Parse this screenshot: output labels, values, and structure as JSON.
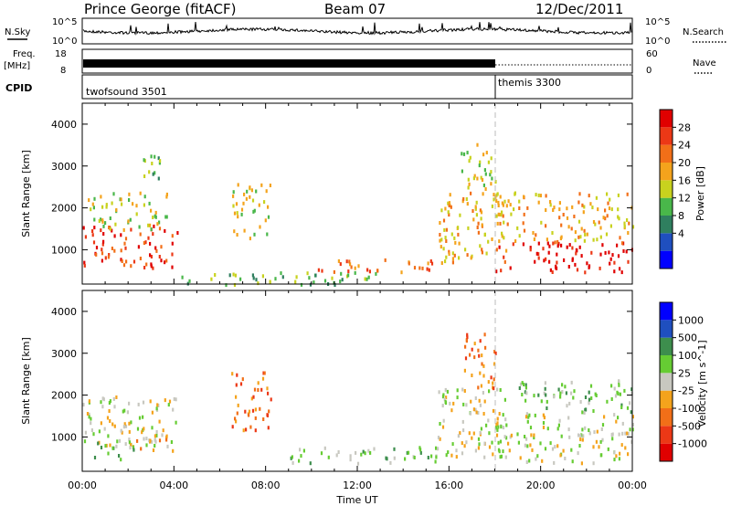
{
  "header": {
    "station": "Prince George (fitACF)",
    "beam": "Beam 07",
    "date": "12/Dec/2011"
  },
  "top_panels": {
    "nsky_label": "N.Sky",
    "nsearch_label": "N.Search",
    "nsky_ticks": [
      "10^5",
      "10^0"
    ],
    "freq_label": "Freq.",
    "freq_unit": "[MHz]",
    "freq_ticks": [
      "18",
      "8"
    ],
    "nave_label": "Nave",
    "nave_ticks": [
      "60",
      "0"
    ],
    "cpid_label": "CPID",
    "cpid_segments": [
      {
        "name": "twofsound 3501",
        "start_hour": 0
      },
      {
        "name": "themis 3300",
        "start_hour": 18
      }
    ]
  },
  "colors": {
    "power_scale": [
      "#0000ff",
      "#1f4fbf",
      "#2f7f5f",
      "#49b74a",
      "#c8d21e",
      "#f4a31c",
      "#f26f18",
      "#ec3816",
      "#e00000"
    ],
    "velocity_scale": [
      "#0000ff",
      "#1f4fbf",
      "#3d8e4d",
      "#66cc33",
      "#c8c8c0",
      "#f4a31c",
      "#f26f18",
      "#ec3816",
      "#e00000"
    ]
  },
  "chart_data": [
    {
      "type": "heatmap",
      "name": "power",
      "xlabel": "Time UT",
      "ylabel": "Slant Range [km]",
      "x_ticks": [
        "00:00",
        "04:00",
        "08:00",
        "12:00",
        "16:00",
        "20:00",
        "00:00"
      ],
      "y_ticks": [
        "1000",
        "2000",
        "3000",
        "4000"
      ],
      "xlim_hours": [
        0,
        24
      ],
      "ylim_km": [
        180,
        4500
      ],
      "colorbar_label": "Power [dB]",
      "colorbar_ticks": [
        "28",
        "24",
        "20",
        "16",
        "12",
        "8",
        "4"
      ],
      "scatter_regions": [
        {
          "t0": 0.0,
          "t1": 4.2,
          "r0": 600,
          "r1": 1600,
          "level": 7
        },
        {
          "t0": 0.2,
          "t1": 3.8,
          "r0": 1500,
          "r1": 2400,
          "level": 4
        },
        {
          "t0": 2.5,
          "t1": 3.5,
          "r0": 2600,
          "r1": 3400,
          "level": 3
        },
        {
          "t0": 6.5,
          "t1": 8.2,
          "r0": 1300,
          "r1": 2600,
          "level": 4
        },
        {
          "t0": 4.0,
          "t1": 13.0,
          "r0": 200,
          "r1": 500,
          "level": 3
        },
        {
          "t0": 10.0,
          "t1": 15.5,
          "r0": 500,
          "r1": 800,
          "level": 6
        },
        {
          "t0": 15.5,
          "t1": 18.5,
          "r0": 700,
          "r1": 2400,
          "level": 5
        },
        {
          "t0": 16.5,
          "t1": 18.0,
          "r0": 2400,
          "r1": 3600,
          "level": 4
        },
        {
          "t0": 18.0,
          "t1": 24.0,
          "r0": 500,
          "r1": 1200,
          "level": 8
        },
        {
          "t0": 18.0,
          "t1": 24.0,
          "r0": 1200,
          "r1": 2400,
          "level": 5
        }
      ]
    },
    {
      "type": "heatmap",
      "name": "velocity",
      "xlabel": "Time UT",
      "ylabel": "Slant Range [km]",
      "x_ticks": [
        "00:00",
        "04:00",
        "08:00",
        "12:00",
        "16:00",
        "20:00",
        "00:00"
      ],
      "y_ticks": [
        "1000",
        "2000",
        "3000",
        "4000"
      ],
      "xlim_hours": [
        0,
        24
      ],
      "ylim_km": [
        180,
        4500
      ],
      "colorbar_label": "Velocity [m s^-1]",
      "colorbar_ticks": [
        "1000",
        "500",
        "100",
        "25",
        "-25",
        "-100",
        "-500",
        "-1000"
      ],
      "scatter_regions": [
        {
          "t0": 0.0,
          "t1": 4.2,
          "r0": 800,
          "r1": 2000,
          "level": 4
        },
        {
          "t0": 2.0,
          "t1": 4.0,
          "r0": 700,
          "r1": 1200,
          "level": 5
        },
        {
          "t0": 0.5,
          "t1": 2.5,
          "r0": 500,
          "r1": 900,
          "level": 3
        },
        {
          "t0": 6.5,
          "t1": 8.2,
          "r0": 1200,
          "r1": 2600,
          "level": 6
        },
        {
          "t0": 9.0,
          "t1": 15.5,
          "r0": 400,
          "r1": 800,
          "level": 3
        },
        {
          "t0": 15.5,
          "t1": 18.5,
          "r0": 500,
          "r1": 2200,
          "level": 4
        },
        {
          "t0": 16.5,
          "t1": 18.0,
          "r0": 2200,
          "r1": 3500,
          "level": 6
        },
        {
          "t0": 18.0,
          "t1": 24.0,
          "r0": 400,
          "r1": 1600,
          "level": 4
        },
        {
          "t0": 19.0,
          "t1": 24.0,
          "r0": 1600,
          "r1": 2400,
          "level": 3
        }
      ]
    }
  ]
}
